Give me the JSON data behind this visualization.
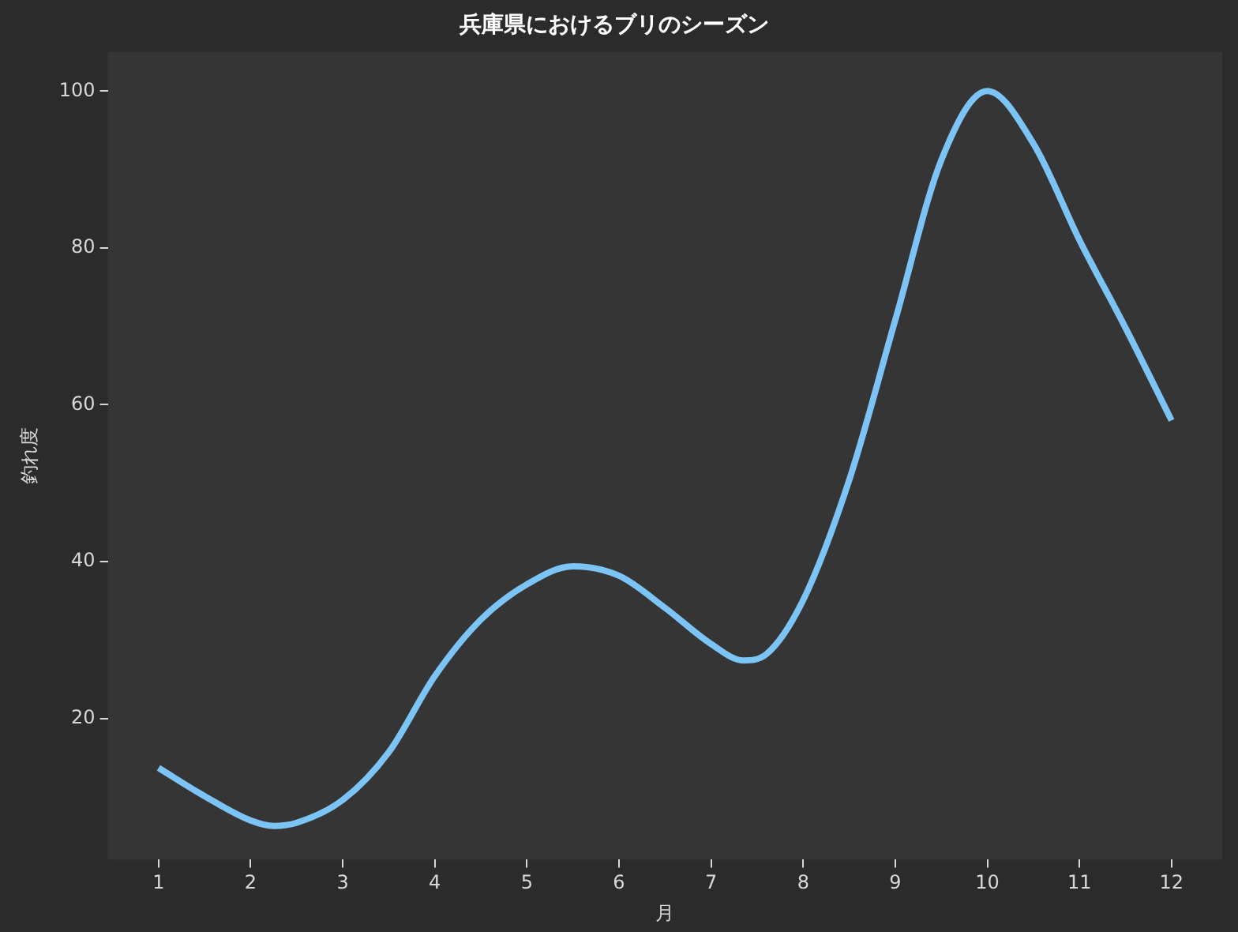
{
  "chart_data": {
    "type": "line",
    "title": "兵庫県におけるブリのシーズン",
    "xlabel": "月",
    "ylabel": "釣れ度",
    "series": [
      {
        "color": "#7cc4f5",
        "x": [
          1,
          1.5,
          2,
          2.25,
          2.5,
          3,
          3.5,
          4,
          4.5,
          5,
          5.5,
          6,
          6.5,
          7,
          7.35,
          7.6,
          8,
          8.5,
          9,
          9.5,
          10,
          10.5,
          11,
          11.5,
          12
        ],
        "values": [
          13.7,
          10.1,
          7,
          6.3,
          6.7,
          9.6,
          15.7,
          25.4,
          32.6,
          37.1,
          39.4,
          38.2,
          34.1,
          29.5,
          27.4,
          28.2,
          35.1,
          50.4,
          70.8,
          91.2,
          100,
          93.3,
          81,
          69.8,
          58
        ]
      }
    ],
    "xlim": [
      0.45,
      12.55
    ],
    "xticks": [
      1,
      2,
      3,
      4,
      5,
      6,
      7,
      8,
      9,
      10,
      11,
      12
    ],
    "ylim": [
      2,
      105
    ],
    "yticks": [
      20,
      40,
      60,
      80,
      100
    ],
    "grid": false,
    "legend": false,
    "marker": "none",
    "line_style": "solid"
  }
}
